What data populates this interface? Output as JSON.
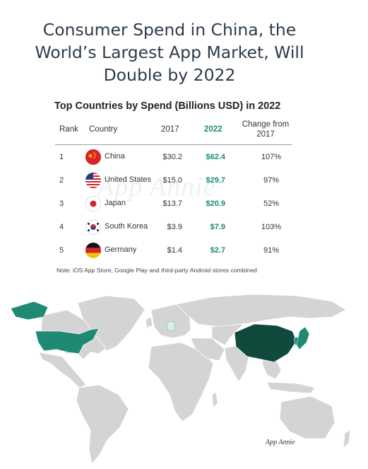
{
  "headline": "Consumer Spend in China, the World’s Largest App Market, Will Double by 2022",
  "table": {
    "title": "Top Countries by Spend (Billions USD) in 2022",
    "headers": {
      "rank": "Rank",
      "country": "Country",
      "y2017": "2017",
      "y2022": "2022",
      "change": "Change from 2017"
    },
    "rows": [
      {
        "rank": "1",
        "country": "China",
        "flag": "china-flag-icon",
        "v2017": "$30.2",
        "v2022": "$62.4",
        "change": "107%"
      },
      {
        "rank": "2",
        "country": "United States",
        "flag": "usa-flag-icon",
        "v2017": "$15.0",
        "v2022": "$29.7",
        "change": "97%"
      },
      {
        "rank": "3",
        "country": "Japan",
        "flag": "japan-flag-icon",
        "v2017": "$13.7",
        "v2022": "$20.9",
        "change": "52%"
      },
      {
        "rank": "4",
        "country": "South Korea",
        "flag": "south-korea-flag-icon",
        "v2017": "$3.9",
        "v2022": "$7.9",
        "change": "103%"
      },
      {
        "rank": "5",
        "country": "Germany",
        "flag": "germany-flag-icon",
        "v2017": "$1.4",
        "v2022": "$2.7",
        "change": "91%"
      }
    ]
  },
  "watermark": "App Annie",
  "note": "Note: iOS App Store, Google Play and third-party Android stores combined",
  "map": {
    "colors": {
      "base": "#d4d4d4",
      "china": "#0f4a3c",
      "top_country": "#1e8a74",
      "germany": "#d8eeec",
      "border": "#ffffff"
    }
  },
  "brand": "App Annie"
}
